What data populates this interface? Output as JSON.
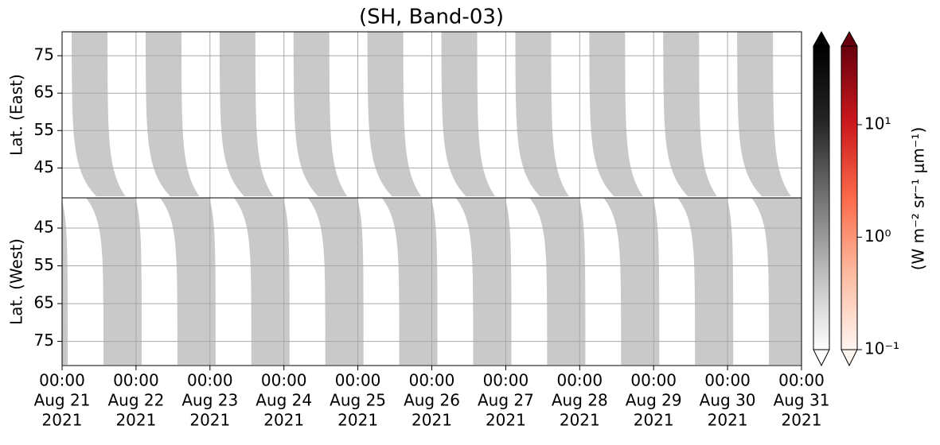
{
  "chart_data": {
    "type": "heatmap",
    "title": "(SH, Band-03)",
    "xlim": [
      "2021-08-21T00:00",
      "2021-08-31T00:00"
    ],
    "xticks": [
      {
        "value": "2021-08-21T00:00",
        "label": [
          "00:00",
          "Aug 21",
          "2021"
        ]
      },
      {
        "value": "2021-08-22T00:00",
        "label": [
          "00:00",
          "Aug 22",
          "2021"
        ]
      },
      {
        "value": "2021-08-23T00:00",
        "label": [
          "00:00",
          "Aug 23",
          "2021"
        ]
      },
      {
        "value": "2021-08-24T00:00",
        "label": [
          "00:00",
          "Aug 24",
          "2021"
        ]
      },
      {
        "value": "2021-08-25T00:00",
        "label": [
          "00:00",
          "Aug 25",
          "2021"
        ]
      },
      {
        "value": "2021-08-26T00:00",
        "label": [
          "00:00",
          "Aug 26",
          "2021"
        ]
      },
      {
        "value": "2021-08-27T00:00",
        "label": [
          "00:00",
          "Aug 27",
          "2021"
        ]
      },
      {
        "value": "2021-08-28T00:00",
        "label": [
          "00:00",
          "Aug 28",
          "2021"
        ]
      },
      {
        "value": "2021-08-29T00:00",
        "label": [
          "00:00",
          "Aug 29",
          "2021"
        ]
      },
      {
        "value": "2021-08-30T00:00",
        "label": [
          "00:00",
          "Aug 30",
          "2021"
        ]
      },
      {
        "value": "2021-08-31T00:00",
        "label": [
          "00:00",
          "Aug 31",
          "2021"
        ]
      }
    ],
    "grid": true,
    "panels": [
      {
        "ylabel": "Lat. (East)",
        "ylim": [
          37,
          81.4
        ],
        "yticks": [
          45,
          55,
          65,
          75
        ]
      },
      {
        "ylabel": "Lat. (West)",
        "ylim": [
          81.4,
          37
        ],
        "yticks": [
          75,
          65,
          55,
          45
        ]
      }
    ],
    "colorbars": [
      {
        "colors": [
          "#ffffff",
          "#bdbdbd",
          "#737373",
          "#252525",
          "#000000"
        ],
        "clim": [
          0.1,
          50
        ],
        "log": true,
        "extend": "both"
      },
      {
        "colors": [
          "#fff5f0",
          "#fcbba1",
          "#fb6a4a",
          "#cb181d",
          "#67000d"
        ],
        "clim": [
          0.1,
          50
        ],
        "log": true,
        "extend": "both",
        "label": "(W m⁻² sr⁻¹ μm⁻¹)",
        "ticks": [
          {
            "value": 0.1,
            "label": "10⁻¹"
          },
          {
            "value": 1,
            "label": "10⁰"
          },
          {
            "value": 10,
            "label": "10¹"
          }
        ]
      }
    ]
  }
}
